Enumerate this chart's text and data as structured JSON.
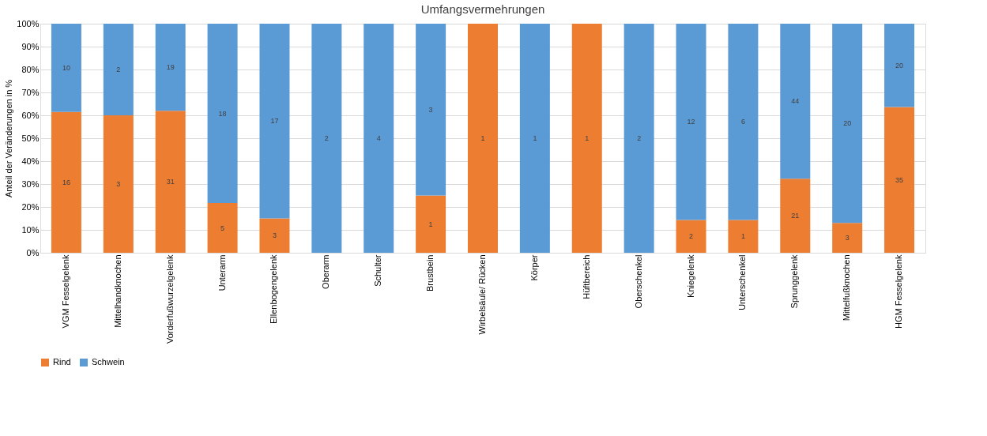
{
  "chart_data": {
    "type": "bar",
    "title": "Umfangsvermehrungen",
    "ylabel": "Anteil der Veränderungen in %",
    "stacked": true,
    "legend": "bottom",
    "grid": "y",
    "categories": [
      "VGM Fesselgelenk",
      "Mittelhandknochen",
      "Vorderfußwurzelgelenk",
      "Unterarm",
      "Ellenbogengelenk",
      "Oberarm",
      "Schulter",
      "Brustbein",
      "Wirbelsäule/ Rücken",
      "Körper",
      "Hüftbereich",
      "Oberschenkel",
      "Kniegelenk",
      "Unterschenkel",
      "Sprunggelenk",
      "Mittelfußknochen",
      "HGM Fesselgelenk"
    ],
    "ylim": [
      0,
      100
    ],
    "yticks": [
      {
        "value": 0,
        "label": "0%"
      },
      {
        "value": 10,
        "label": "10%"
      },
      {
        "value": 20,
        "label": "20%"
      },
      {
        "value": 30,
        "label": "30%"
      },
      {
        "value": 40,
        "label": "40%"
      },
      {
        "value": 50,
        "label": "50%"
      },
      {
        "value": 60,
        "label": "60%"
      },
      {
        "value": 70,
        "label": "70%"
      },
      {
        "value": 80,
        "label": "80%"
      },
      {
        "value": 90,
        "label": "90%"
      },
      {
        "value": 100,
        "label": "100%"
      }
    ],
    "series": [
      {
        "name": "Rind",
        "color": "#ed7d31",
        "values": [
          61.5,
          60,
          62,
          21.7,
          15,
          0,
          0,
          25,
          100,
          0,
          100,
          0,
          14.3,
          14.3,
          32.3,
          13,
          63.6
        ]
      },
      {
        "name": "Schwein",
        "color": "#5b9bd5",
        "values": [
          38.5,
          40,
          38,
          78.3,
          85,
          100,
          100,
          75,
          0,
          100,
          0,
          100,
          85.7,
          85.7,
          67.7,
          87,
          36.4
        ]
      }
    ],
    "annotations": [
      "16",
      "3",
      "31",
      "5",
      "3",
      "1",
      "1",
      "1",
      "2",
      "1",
      "21",
      "3",
      "35",
      "10",
      "2",
      "19",
      "18",
      "17",
      "2",
      "4",
      "3",
      "1",
      "2",
      "12",
      "6",
      "44",
      "20",
      "20"
    ]
  }
}
